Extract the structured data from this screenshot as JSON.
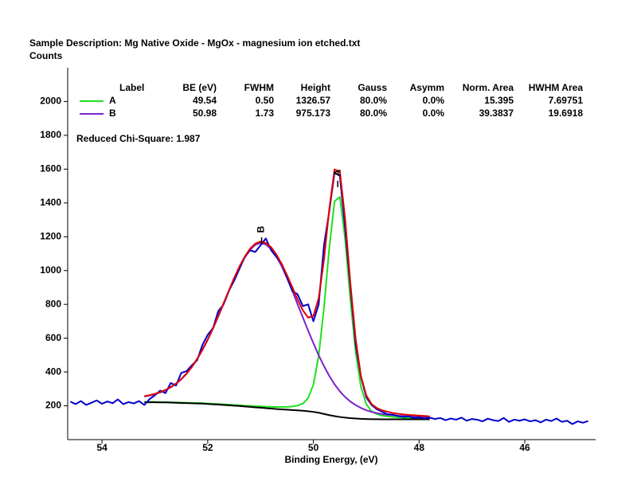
{
  "chart_data": {
    "type": "line",
    "title": "Sample Description:  Mg Native Oxide - MgOx -  magnesium ion etched.txt",
    "y_label": "Counts",
    "x_label": "Binding Energy, (eV)",
    "annotation": "Reduced Chi-Square: 1.987",
    "xlim": [
      54.65,
      44.66
    ],
    "ylim": [
      0,
      2200
    ],
    "xticks": [
      54,
      52,
      50,
      48,
      46
    ],
    "yticks": [
      200,
      400,
      600,
      800,
      1000,
      1200,
      1400,
      1600,
      1800,
      2000
    ],
    "fit_table": {
      "columns": [
        "Label",
        "BE (eV)",
        "FWHM",
        "Height",
        "Gauss",
        "Asymm",
        "Norm. Area",
        "HWHM Area"
      ],
      "rows": [
        [
          "A",
          "49.54",
          "0.50",
          "1326.57",
          "80.0%",
          "0.0%",
          "15.395",
          "7.69751"
        ],
        [
          "B",
          "50.98",
          "1.73",
          "975.173",
          "80.0%",
          "0.0%",
          "39.3837",
          "19.6918"
        ]
      ]
    },
    "series": [
      {
        "color": "#1ee01e",
        "x": [
          53.2,
          53.1,
          53.0,
          52.9,
          52.8,
          52.7,
          52.6,
          52.5,
          52.4,
          52.3,
          52.2,
          52.1,
          52.0,
          51.9,
          51.8,
          51.7,
          51.6,
          51.5,
          51.4,
          51.3,
          51.2,
          51.1,
          51.0,
          50.9,
          50.8,
          50.7,
          50.6,
          50.5,
          50.4,
          50.3,
          50.2,
          50.1,
          50.0,
          49.9,
          49.8,
          49.7,
          49.6,
          49.5,
          49.4,
          49.3,
          49.2,
          49.1,
          49.0,
          48.9,
          48.8,
          48.7,
          48.6,
          48.5,
          48.4,
          48.3,
          48.2,
          48.1,
          48.0,
          47.9,
          47.8
        ],
        "values": [
          223,
          223,
          223,
          222,
          222,
          221,
          220,
          219,
          218,
          217,
          217,
          216,
          214,
          212,
          211,
          209,
          207,
          205,
          204,
          201,
          200,
          198,
          197,
          195,
          194,
          193,
          193,
          194,
          196,
          201,
          213,
          245,
          326,
          497,
          781,
          1132,
          1410,
          1435,
          1185,
          825,
          514,
          311,
          210,
          167,
          151,
          142,
          138,
          134,
          132,
          130,
          129,
          128,
          127,
          126,
          125
        ]
      },
      {
        "color": "#7a22cc",
        "x": [
          53.2,
          53.1,
          53.0,
          52.9,
          52.8,
          52.7,
          52.6,
          52.5,
          52.4,
          52.3,
          52.2,
          52.1,
          52.0,
          51.9,
          51.8,
          51.7,
          51.6,
          51.5,
          51.4,
          51.3,
          51.2,
          51.1,
          51.0,
          50.9,
          50.8,
          50.7,
          50.6,
          50.5,
          50.4,
          50.3,
          50.2,
          50.1,
          50.0,
          49.9,
          49.8,
          49.7,
          49.6,
          49.5,
          49.4,
          49.3,
          49.2,
          49.1,
          49.0,
          48.9,
          48.8,
          48.7,
          48.6,
          48.5,
          48.4,
          48.3,
          48.2,
          48.1,
          48.0,
          47.9,
          47.8
        ],
        "values": [
          255,
          261,
          269,
          279,
          292,
          309,
          330,
          357,
          389,
          429,
          475,
          530,
          590,
          657,
          729,
          803,
          878,
          952,
          1019,
          1077,
          1123,
          1152,
          1164,
          1154,
          1128,
          1083,
          1025,
          956,
          881,
          801,
          723,
          645,
          570,
          499,
          435,
          377,
          327,
          286,
          252,
          225,
          204,
          187,
          174,
          164,
          157,
          151,
          147,
          144,
          141,
          139,
          137,
          136,
          135,
          134,
          133
        ]
      },
      {
        "color": "#000000",
        "x": [
          53.2,
          53.1,
          53.0,
          52.9,
          52.8,
          52.7,
          52.6,
          52.5,
          52.4,
          52.3,
          52.2,
          52.1,
          52.0,
          51.9,
          51.8,
          51.7,
          51.6,
          51.5,
          51.4,
          51.3,
          51.2,
          51.1,
          51.0,
          50.9,
          50.8,
          50.7,
          50.6,
          50.5,
          50.4,
          50.3,
          50.2,
          50.1,
          50.0,
          49.9,
          49.8,
          49.7,
          49.6,
          49.5,
          49.4,
          49.3,
          49.2,
          49.1,
          49.0,
          48.9,
          48.8,
          48.7,
          48.6,
          48.5,
          48.4,
          48.3,
          48.2,
          48.1,
          48.0,
          47.9,
          47.8
        ],
        "values": [
          221,
          221,
          221,
          220,
          220,
          219,
          218,
          217,
          216,
          215,
          214,
          213,
          211,
          209,
          207,
          205,
          203,
          201,
          199,
          196,
          194,
          191,
          189,
          186,
          184,
          181,
          179,
          177,
          175,
          173,
          171,
          168,
          164,
          159,
          152,
          145,
          139,
          134,
          130,
          127,
          125,
          123,
          122,
          121,
          121,
          120,
          120,
          120,
          120,
          120,
          120,
          120,
          120,
          120,
          120
        ]
      },
      {
        "color": "#0000cc",
        "x": [
          54.6,
          54.5,
          54.4,
          54.3,
          54.2,
          54.1,
          54.0,
          53.9,
          53.8,
          53.7,
          53.6,
          53.5,
          53.4,
          53.3,
          53.2,
          53.1,
          53.0,
          52.9,
          52.8,
          52.7,
          52.6,
          52.5,
          52.4,
          52.3,
          52.2,
          52.1,
          52.0,
          51.9,
          51.8,
          51.7,
          51.6,
          51.5,
          51.4,
          51.3,
          51.2,
          51.1,
          51.0,
          50.9,
          50.8,
          50.7,
          50.6,
          50.5,
          50.4,
          50.3,
          50.2,
          50.1,
          50.0,
          49.9,
          49.8,
          49.7,
          49.6,
          49.5,
          49.4,
          49.3,
          49.2,
          49.1,
          49.0,
          48.9,
          48.8,
          48.7,
          48.6,
          48.5,
          48.4,
          48.3,
          48.2,
          48.1,
          48.0,
          47.9,
          47.8,
          47.7,
          47.6,
          47.5,
          47.4,
          47.3,
          47.2,
          47.1,
          47.0,
          46.9,
          46.8,
          46.7,
          46.6,
          46.5,
          46.4,
          46.3,
          46.2,
          46.1,
          46.0,
          45.9,
          45.8,
          45.7,
          45.6,
          45.5,
          45.4,
          45.3,
          45.2,
          45.1,
          45.0,
          44.9,
          44.8
        ],
        "values": [
          225,
          210,
          228,
          205,
          218,
          232,
          212,
          226,
          215,
          238,
          210,
          222,
          214,
          228,
          205,
          240,
          262,
          290,
          275,
          335,
          320,
          395,
          405,
          440,
          470,
          560,
          620,
          660,
          760,
          800,
          880,
          940,
          1010,
          1080,
          1120,
          1110,
          1150,
          1190,
          1120,
          1080,
          1040,
          960,
          880,
          860,
          790,
          800,
          700,
          800,
          1150,
          1350,
          1580,
          1560,
          1250,
          900,
          560,
          370,
          250,
          205,
          180,
          165,
          150,
          148,
          140,
          135,
          138,
          128,
          132,
          125,
          130,
          122,
          128,
          115,
          125,
          118,
          130,
          112,
          122,
          118,
          108,
          124,
          115,
          110,
          128,
          105,
          118,
          112,
          120,
          108,
          115,
          102,
          118,
          110,
          125,
          105,
          112,
          92,
          108,
          100,
          110
        ]
      },
      {
        "color": "#e00000",
        "x": [
          53.2,
          53.1,
          53.0,
          52.9,
          52.8,
          52.7,
          52.6,
          52.5,
          52.4,
          52.3,
          52.2,
          52.1,
          52.0,
          51.9,
          51.8,
          51.7,
          51.6,
          51.5,
          51.4,
          51.3,
          51.2,
          51.1,
          51.0,
          50.9,
          50.8,
          50.7,
          50.6,
          50.5,
          50.4,
          50.3,
          50.2,
          50.1,
          50.0,
          49.9,
          49.8,
          49.7,
          49.6,
          49.5,
          49.4,
          49.3,
          49.2,
          49.1,
          49.0,
          48.9,
          48.8,
          48.7,
          48.6,
          48.5,
          48.4,
          48.3,
          48.2,
          48.1,
          48.0,
          47.9,
          47.8
        ],
        "values": [
          257,
          263,
          271,
          281,
          294,
          311,
          332,
          359,
          391,
          431,
          478,
          533,
          593,
          660,
          733,
          807,
          882,
          956,
          1024,
          1082,
          1129,
          1159,
          1172,
          1163,
          1138,
          1095,
          1039,
          973,
          902,
          829,
          765,
          722,
          732,
          837,
          1064,
          1364,
          1598,
          1587,
          1307,
          923,
          593,
          375,
          262,
          210,
          187,
          173,
          165,
          158,
          153,
          149,
          146,
          144,
          142,
          140,
          138
        ]
      }
    ]
  }
}
